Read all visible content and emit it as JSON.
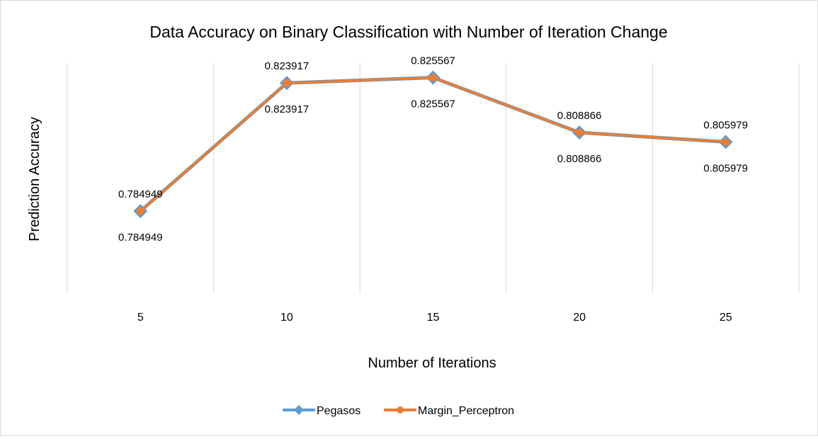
{
  "chart_data": {
    "type": "line",
    "title": "Data Accuracy on Binary Classification with Number of Iteration Change",
    "xlabel": "Number of Iterations",
    "ylabel": "Prediction Accuracy",
    "categories": [
      "5",
      "10",
      "15",
      "20",
      "25"
    ],
    "ylim": [
      0.76,
      0.83
    ],
    "grid": "vertical",
    "legend_position": "bottom",
    "series": [
      {
        "name": "Pegasos",
        "color": "#5b9bd5",
        "marker": "diamond",
        "values": [
          0.784949,
          0.823917,
          0.825567,
          0.808866,
          0.805979
        ],
        "labels": [
          "0.784949",
          "0.823917",
          "0.825567",
          "0.808866",
          "0.805979"
        ],
        "label_position": "above"
      },
      {
        "name": "Margin_Perceptron",
        "color": "#ed7d31",
        "marker": "circle",
        "values": [
          0.784949,
          0.823917,
          0.825567,
          0.808866,
          0.805979
        ],
        "labels": [
          "0.784949",
          "0.823917",
          "0.825567",
          "0.808866",
          "0.805979"
        ],
        "label_position": "below"
      }
    ]
  }
}
